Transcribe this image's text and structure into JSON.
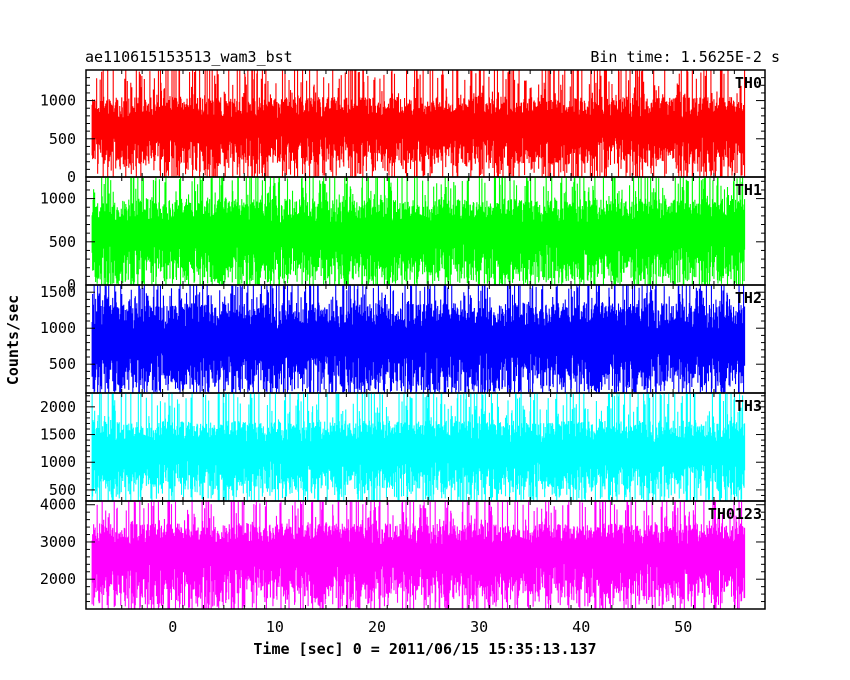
{
  "chart_data": {
    "type": "line",
    "title": "ae110615153513_wam3_bst",
    "subtitle": "Bin time: 1.5625E-2 s",
    "xlabel": "Time [sec] 0 = 2011/06/15 15:35:13.137",
    "ylabel": "Counts/sec",
    "xlim": [
      -8.5,
      58
    ],
    "x_data_range": [
      -7.9,
      56.0
    ],
    "x_ticks": [
      "0",
      "10",
      "20",
      "30",
      "40",
      "50"
    ],
    "grid": false,
    "panels": [
      {
        "name": "TH0",
        "color": "#ff0000",
        "ylim": [
          0,
          1400
        ],
        "y_ticks": [
          "0",
          "500",
          "1000"
        ],
        "baseline": 580,
        "low_typical": 170,
        "high_typical": 1050,
        "peak": 1400
      },
      {
        "name": "TH1",
        "color": "#00ff00",
        "ylim": [
          0,
          1250
        ],
        "y_ticks": [
          "0",
          "500",
          "1000"
        ],
        "baseline": 530,
        "low_typical": 70,
        "high_typical": 1000,
        "peak": 1250
      },
      {
        "name": "TH2",
        "color": "#0000ff",
        "ylim": [
          100,
          1600
        ],
        "y_ticks": [
          "500",
          "1000",
          "1500"
        ],
        "baseline": 750,
        "low_typical": 200,
        "high_typical": 1350,
        "peak": 1600
      },
      {
        "name": "TH3",
        "color": "#00ffff",
        "ylim": [
          300,
          2250
        ],
        "y_ticks": [
          "500",
          "1000",
          "1500",
          "2000"
        ],
        "baseline": 1100,
        "low_typical": 500,
        "high_typical": 1750,
        "peak": 2250
      },
      {
        "name": "TH0123",
        "color": "#ff00ff",
        "ylim": [
          1200,
          4100
        ],
        "y_ticks": [
          "2000",
          "3000",
          "4000"
        ],
        "baseline": 2550,
        "low_typical": 1500,
        "high_typical": 3500,
        "peak": 4100
      }
    ]
  }
}
